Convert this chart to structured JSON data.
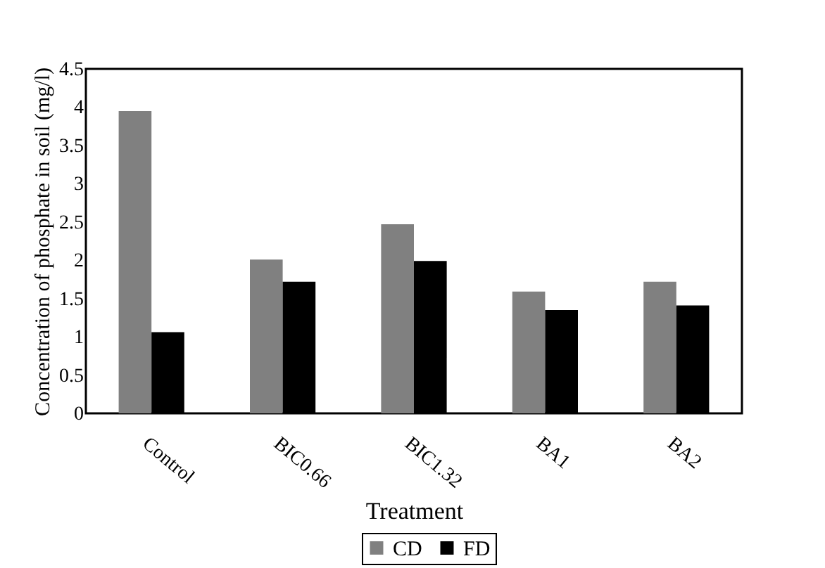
{
  "chart_data": {
    "type": "bar",
    "xlabel": "Treatment",
    "ylabel": "Concentration of phosphate in soil (mg/l)",
    "categories": [
      "Control",
      "BIC0.66",
      "BIC1.32",
      "BA1",
      "BA2"
    ],
    "series": [
      {
        "name": "CD",
        "color": "#808080",
        "values": [
          3.95,
          2.01,
          2.47,
          1.59,
          1.72
        ]
      },
      {
        "name": "FD",
        "color": "#000000",
        "values": [
          1.06,
          1.72,
          1.99,
          1.35,
          1.41
        ]
      }
    ],
    "ylim": [
      0,
      4.5
    ],
    "yticks": [
      0,
      0.5,
      1,
      1.5,
      2,
      2.5,
      3,
      3.5,
      4,
      4.5
    ],
    "grid": false,
    "legend": "bottom"
  }
}
